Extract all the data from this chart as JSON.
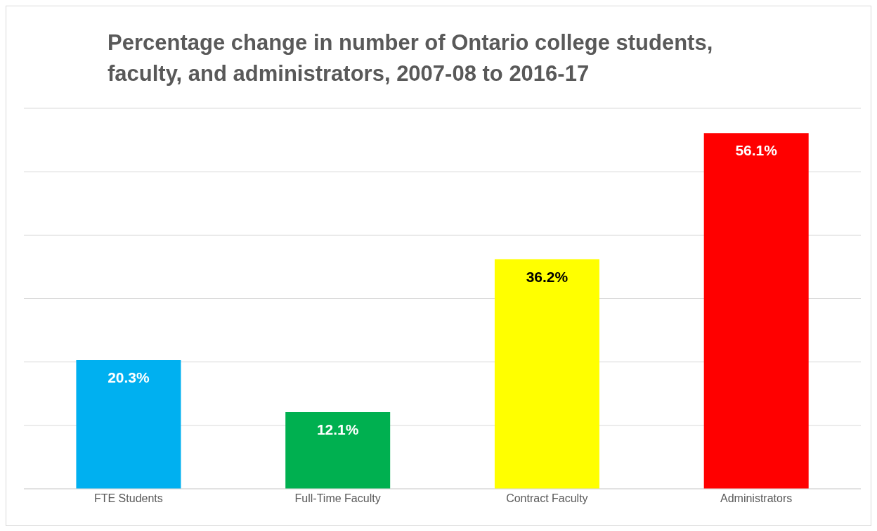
{
  "chart_data": {
    "type": "bar",
    "title": "Percentage change in number of Ontario college students, faculty, and administrators, 2007-08 to 2016-17",
    "categories": [
      "FTE Students",
      "Full-Time Faculty",
      "Contract Faculty",
      "Administrators"
    ],
    "values": [
      20.3,
      12.1,
      36.2,
      56.1
    ],
    "value_labels": [
      "20.3%",
      "12.1%",
      "36.2%",
      "56.1%"
    ],
    "colors": [
      "#00b0f0",
      "#00b050",
      "#ffff00",
      "#ff0000"
    ],
    "ylim": [
      0,
      60
    ],
    "yticks": [
      {
        "value": 0,
        "label": null
      },
      {
        "value": 10,
        "label": null
      },
      {
        "value": 20,
        "label": null
      },
      {
        "value": 30,
        "label": null
      },
      {
        "value": 40,
        "label": null
      },
      {
        "value": 50,
        "label": null
      },
      {
        "value": 60,
        "label": null
      }
    ],
    "tick_labels": "x",
    "grid": "y"
  }
}
